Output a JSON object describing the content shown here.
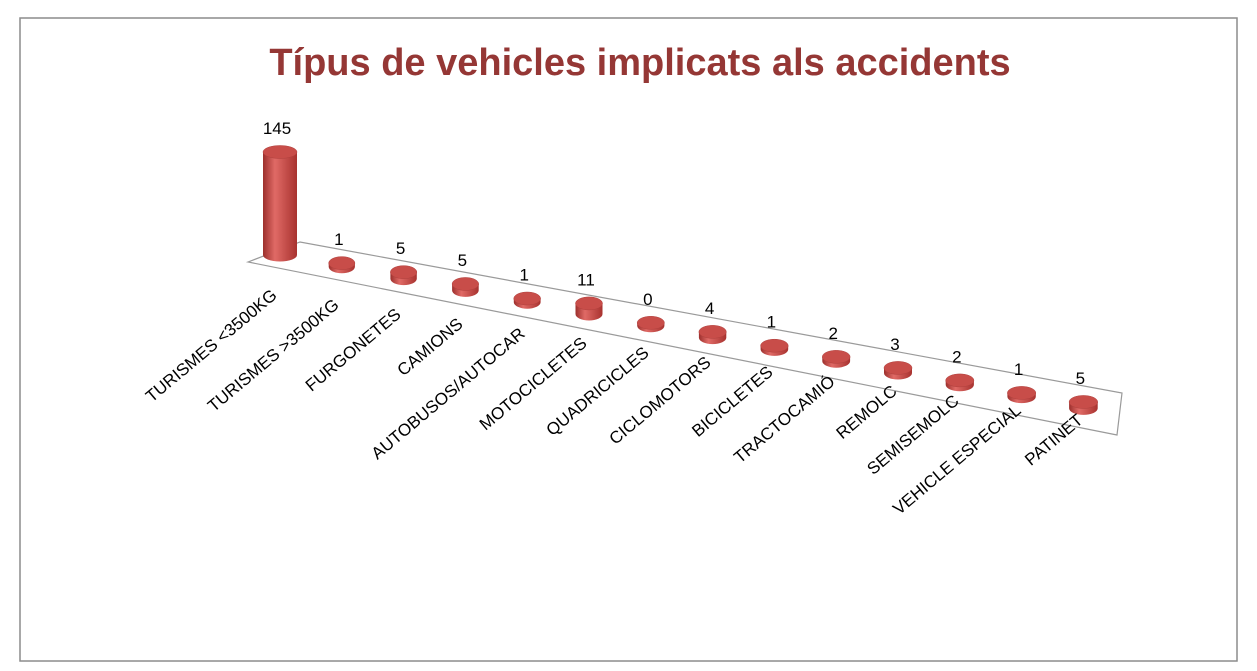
{
  "chart_data": {
    "type": "bar3d",
    "title": "Típus de vehicles implicats als accidents",
    "categories": [
      "TURISMES <3500KG",
      "TURISMES >3500KG",
      "FURGONETES",
      "CAMIONS",
      "AUTOBUSOS/AUTOCAR",
      "MOTOCICLETES",
      "QUADRICICLES",
      "CICLOMOTORS",
      "BICICLETES",
      "TRACTOCAMIÓ",
      "REMOLC",
      "SEMISEMOLC",
      "VEHICLE ESPECIAL",
      "PATINET"
    ],
    "values": [
      145,
      1,
      5,
      5,
      1,
      11,
      0,
      4,
      1,
      2,
      3,
      2,
      1,
      5
    ],
    "color": "#c0504d"
  }
}
